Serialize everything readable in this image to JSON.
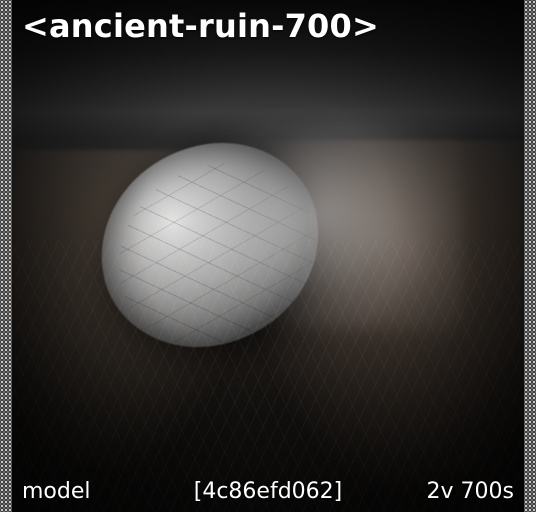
{
  "card": {
    "title": "<ancient-ruin-700>",
    "footer": {
      "left": "model",
      "center": "[4c86efd062]",
      "right": "2v 700s"
    }
  },
  "colors": {
    "text": "#ffffff",
    "border_dark": "#0d0d0d",
    "border_dot": "#d2d2d2"
  }
}
